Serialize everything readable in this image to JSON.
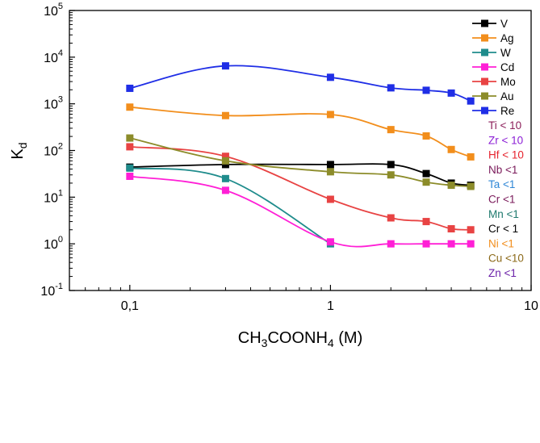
{
  "chart_data": {
    "type": "scatter",
    "xscale": "log",
    "yscale": "log",
    "xlim": [
      0.05,
      10
    ],
    "ylim": [
      0.1,
      100000
    ],
    "xlabel": {
      "main": "CH",
      "s1": "3",
      "mid": "COONH",
      "s2": "4",
      "tail": " (M)"
    },
    "ylabel": {
      "main": "K",
      "sub": "d"
    },
    "x_ticks": [
      {
        "value": 0.1,
        "label": "0,1"
      },
      {
        "value": 1,
        "label": "1"
      },
      {
        "value": 10,
        "label": "10"
      }
    ],
    "y_ticks": [
      {
        "value": 0.1,
        "base": "10",
        "exp": "-1"
      },
      {
        "value": 1,
        "base": "10",
        "exp": "0"
      },
      {
        "value": 10,
        "base": "10",
        "exp": "1"
      },
      {
        "value": 100,
        "base": "10",
        "exp": "2"
      },
      {
        "value": 1000,
        "base": "10",
        "exp": "3"
      },
      {
        "value": 10000,
        "base": "10",
        "exp": "4"
      },
      {
        "value": 100000,
        "base": "10",
        "exp": "5"
      }
    ],
    "grid": false,
    "legend_position": "top-right",
    "series": [
      {
        "name": "V",
        "color": "#000000",
        "x": [
          0.1,
          0.3,
          1,
          2,
          3,
          4,
          5
        ],
        "y": [
          44,
          50,
          50,
          50,
          32,
          20,
          18
        ]
      },
      {
        "name": "Ag",
        "color": "#f28e1c",
        "x": [
          0.1,
          0.3,
          1,
          2,
          3,
          4,
          5
        ],
        "y": [
          850,
          560,
          590,
          280,
          205,
          105,
          73
        ]
      },
      {
        "name": "W",
        "color": "#1f8c8c",
        "x": [
          0.1,
          0.3,
          1
        ],
        "y": [
          42,
          25,
          1.0
        ]
      },
      {
        "name": "Cd",
        "color": "#ff1fd6",
        "x": [
          0.1,
          0.3,
          1,
          2,
          3,
          4,
          5
        ],
        "y": [
          28,
          14,
          1.1,
          1.0,
          1.0,
          1.0,
          1.0
        ]
      },
      {
        "name": "Mo",
        "color": "#e84343",
        "x": [
          0.1,
          0.3,
          1,
          2,
          3,
          4,
          5
        ],
        "y": [
          120,
          75,
          9,
          3.6,
          3.0,
          2.1,
          2.0
        ]
      },
      {
        "name": "Au",
        "color": "#8c8c2a",
        "x": [
          0.1,
          0.3,
          1,
          2,
          3,
          4,
          5
        ],
        "y": [
          185,
          60,
          35,
          30,
          21,
          18,
          17
        ]
      },
      {
        "name": "Re",
        "color": "#1f2ee6",
        "x": [
          0.1,
          0.3,
          1,
          2,
          3,
          4,
          5
        ],
        "y": [
          2150,
          6500,
          3700,
          2200,
          1950,
          1700,
          1150
        ]
      }
    ],
    "annotations": [
      {
        "text": "Ti < 10",
        "color": "#8c1f5a"
      },
      {
        "text": "Zr < 10",
        "color": "#8c1fd6"
      },
      {
        "text": "Hf < 10",
        "color": "#e6242e"
      },
      {
        "text": "Nb <1",
        "color": "#7a1a5a"
      },
      {
        "text": "Ta <1",
        "color": "#2e86d6"
      },
      {
        "text": "Cr <1",
        "color": "#7a1a5a"
      },
      {
        "text": "Mn <1",
        "color": "#1f7a6e"
      },
      {
        "text": "Cr < 1",
        "color": "#000000"
      },
      {
        "text": "Ni <1",
        "color": "#f28e1c"
      },
      {
        "text": "Cu <10",
        "color": "#8c6a1a"
      },
      {
        "text": "Zn <1",
        "color": "#6a1fa8"
      }
    ]
  }
}
